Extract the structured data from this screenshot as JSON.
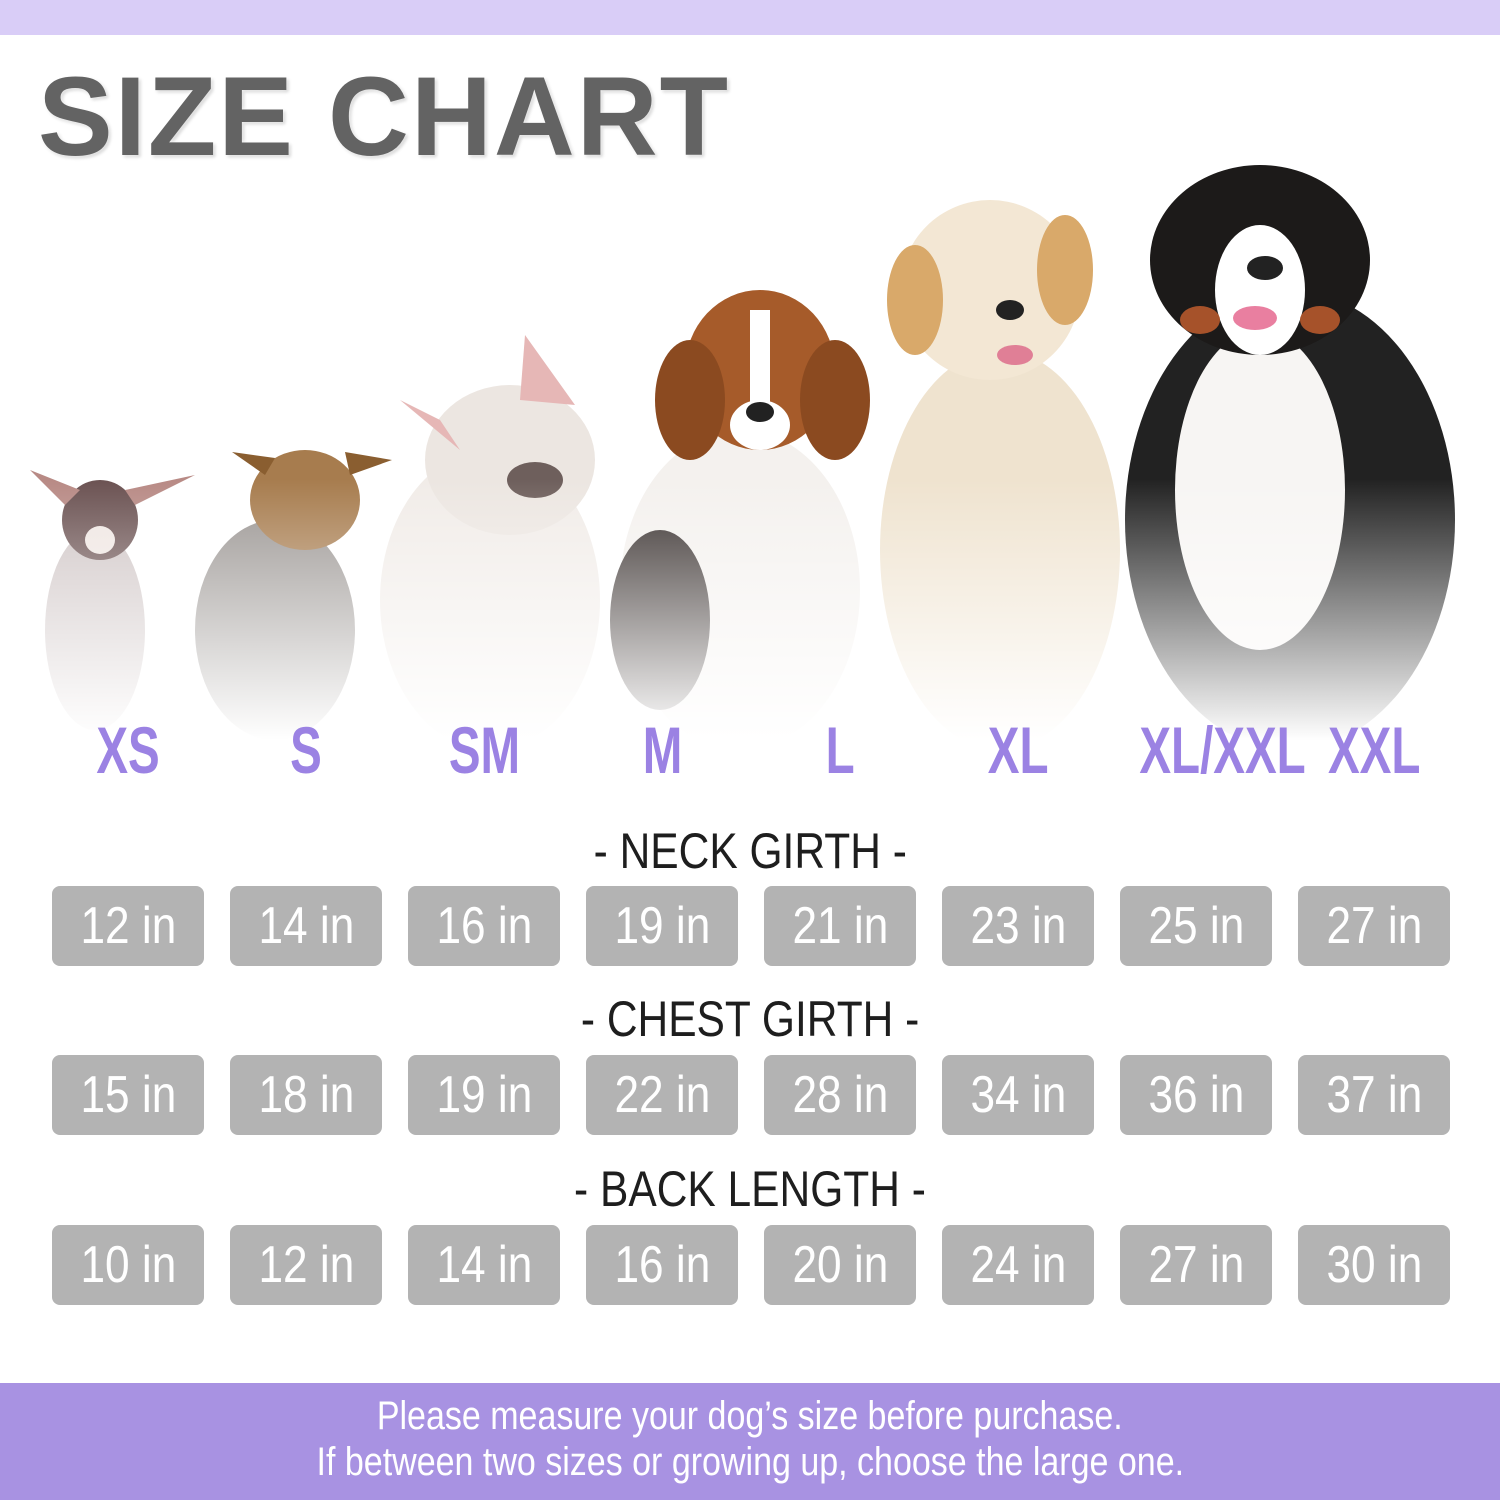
{
  "title": "SIZE CHART",
  "colors": {
    "accent_band": "#d9cdf7",
    "size_label": "#9b82e3",
    "value_box": "#b3b3b3",
    "footer": "#a892e2",
    "title": "#636363"
  },
  "dogs": [
    "chihuahua",
    "yorkshire-terrier",
    "french-bulldog",
    "beagle",
    "golden-retriever",
    "bernese-mountain-dog"
  ],
  "sizes": [
    "XS",
    "S",
    "SM",
    "M",
    "L",
    "XL",
    "XL/XXL",
    "XXL"
  ],
  "sections": [
    {
      "heading": "- NECK GIRTH -",
      "values": [
        "12 in",
        "14 in",
        "16 in",
        "19 in",
        "21 in",
        "23 in",
        "25 in",
        "27 in"
      ]
    },
    {
      "heading": "- CHEST GIRTH -",
      "values": [
        "15 in",
        "18 in",
        "19 in",
        "22 in",
        "28 in",
        "34 in",
        "36 in",
        "37 in"
      ]
    },
    {
      "heading": "- BACK LENGTH -",
      "values": [
        "10 in",
        "12 in",
        "14 in",
        "16 in",
        "20 in",
        "24 in",
        "27 in",
        "30 in"
      ]
    }
  ],
  "footer": {
    "line1": "Please measure your dog’s size before purchase.",
    "line2": "If between two sizes or growing up, choose the large one."
  }
}
